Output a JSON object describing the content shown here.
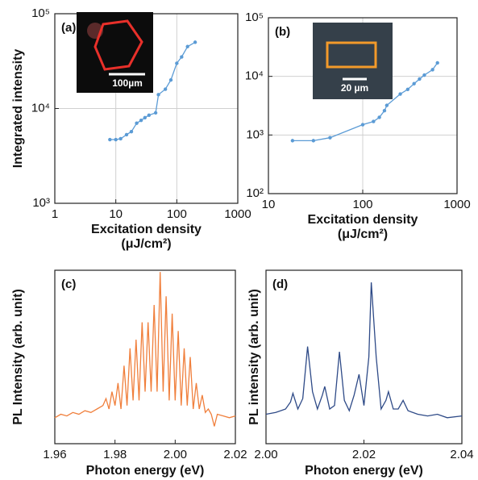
{
  "chart_data": [
    {
      "type": "line",
      "panel_label": "(a)",
      "xlabel": "Excitation density",
      "xlabel_unit": "(μJ/cm²)",
      "ylabel": "Integrated intensity",
      "inset_scale_label": "100µm",
      "color": "#5b9bd5",
      "markers": true,
      "grid": true,
      "xscale": "log",
      "yscale": "log",
      "x": [
        8,
        10,
        12,
        15,
        18,
        22,
        26,
        30,
        35,
        45,
        50,
        65,
        80,
        100,
        120,
        150,
        200
      ],
      "values": [
        4700,
        4700,
        4800,
        5300,
        5700,
        7000,
        7500,
        8000,
        8500,
        9000,
        14000,
        16000,
        20000,
        30000,
        35000,
        45000,
        50000
      ],
      "xlim": [
        1,
        1000
      ],
      "ylim": [
        1000,
        100000
      ],
      "xticks": [
        1,
        10,
        100,
        1000
      ],
      "yticks": [
        {
          "value": 1000,
          "label": "10³"
        },
        {
          "value": 10000,
          "label": "10⁴"
        },
        {
          "value": 100000,
          "label": "10⁵"
        }
      ]
    },
    {
      "type": "line",
      "panel_label": "(b)",
      "xlabel": "Excitation density",
      "xlabel_unit": "(μJ/cm²)",
      "inset_scale_label": "20 µm",
      "color": "#5b9bd5",
      "markers": true,
      "grid": true,
      "xscale": "log",
      "yscale": "log",
      "x": [
        18,
        30,
        45,
        100,
        130,
        150,
        170,
        180,
        250,
        300,
        350,
        400,
        450,
        550,
        620
      ],
      "values": [
        800,
        800,
        900,
        1500,
        1700,
        2000,
        2600,
        3200,
        5000,
        6000,
        7500,
        9000,
        10500,
        13000,
        17000
      ],
      "xlim": [
        10,
        1000
      ],
      "ylim": [
        100,
        100000
      ],
      "xticks": [
        10,
        100,
        1000
      ],
      "yticks": [
        {
          "value": 100,
          "label": "10²"
        },
        {
          "value": 1000,
          "label": "10³"
        },
        {
          "value": 10000,
          "label": "10⁴"
        },
        {
          "value": 100000,
          "label": "10⁵"
        }
      ]
    },
    {
      "type": "line",
      "panel_label": "(c)",
      "xlabel": "Photon energy (eV)",
      "ylabel": "PL Intensity (arb. unit)",
      "color": "#f07f3c",
      "markers": false,
      "grid": false,
      "x": [
        1.96,
        1.962,
        1.964,
        1.966,
        1.968,
        1.97,
        1.972,
        1.974,
        1.976,
        1.977,
        1.978,
        1.979,
        1.98,
        1.981,
        1.982,
        1.983,
        1.984,
        1.985,
        1.986,
        1.987,
        1.988,
        1.989,
        1.99,
        1.991,
        1.992,
        1.993,
        1.994,
        1.995,
        1.996,
        1.997,
        1.998,
        1.999,
        2.0,
        2.001,
        2.002,
        2.003,
        2.004,
        2.005,
        2.006,
        2.007,
        2.008,
        2.009,
        2.01,
        2.011,
        2.012,
        2.013,
        2.014,
        2.016,
        2.018,
        2.02
      ],
      "values": [
        0.15,
        0.17,
        0.16,
        0.18,
        0.17,
        0.19,
        0.18,
        0.2,
        0.22,
        0.26,
        0.2,
        0.3,
        0.22,
        0.35,
        0.2,
        0.45,
        0.22,
        0.55,
        0.25,
        0.6,
        0.25,
        0.7,
        0.3,
        0.7,
        0.3,
        0.8,
        0.3,
        0.99,
        0.3,
        0.85,
        0.25,
        0.75,
        0.25,
        0.65,
        0.22,
        0.55,
        0.22,
        0.5,
        0.2,
        0.35,
        0.2,
        0.28,
        0.18,
        0.2,
        0.17,
        0.1,
        0.17,
        0.16,
        0.15,
        0.16
      ],
      "xlim": [
        1.96,
        2.02
      ],
      "ylim": [
        0,
        1
      ],
      "xticks": [
        1.96,
        1.98,
        {
          "value": 2,
          "label": "2.00"
        },
        2.02
      ]
    },
    {
      "type": "line",
      "panel_label": "(d)",
      "xlabel": "Photon energy (eV)",
      "ylabel": "PL intensity (arb. unit)",
      "color": "#2e4a87",
      "markers": false,
      "grid": false,
      "x": [
        2.0,
        2.002,
        2.004,
        2.005,
        2.0055,
        2.0065,
        2.0075,
        2.0085,
        2.0095,
        2.0105,
        2.0115,
        2.012,
        2.013,
        2.014,
        2.015,
        2.016,
        2.017,
        2.018,
        2.019,
        2.02,
        2.021,
        2.0215,
        2.0225,
        2.0235,
        2.0245,
        2.025,
        2.026,
        2.027,
        2.028,
        2.029,
        2.031,
        2.033,
        2.035,
        2.037,
        2.04
      ],
      "values": [
        0.17,
        0.18,
        0.2,
        0.24,
        0.29,
        0.2,
        0.26,
        0.56,
        0.3,
        0.2,
        0.28,
        0.33,
        0.2,
        0.22,
        0.53,
        0.25,
        0.19,
        0.28,
        0.4,
        0.22,
        0.5,
        0.93,
        0.5,
        0.2,
        0.25,
        0.3,
        0.2,
        0.2,
        0.25,
        0.19,
        0.17,
        0.16,
        0.17,
        0.15,
        0.16
      ],
      "xlim": [
        2,
        2.04
      ],
      "ylim": [
        0,
        1
      ],
      "xticks": [
        {
          "value": 2,
          "label": "2.00"
        },
        2.02,
        2.04
      ]
    }
  ]
}
